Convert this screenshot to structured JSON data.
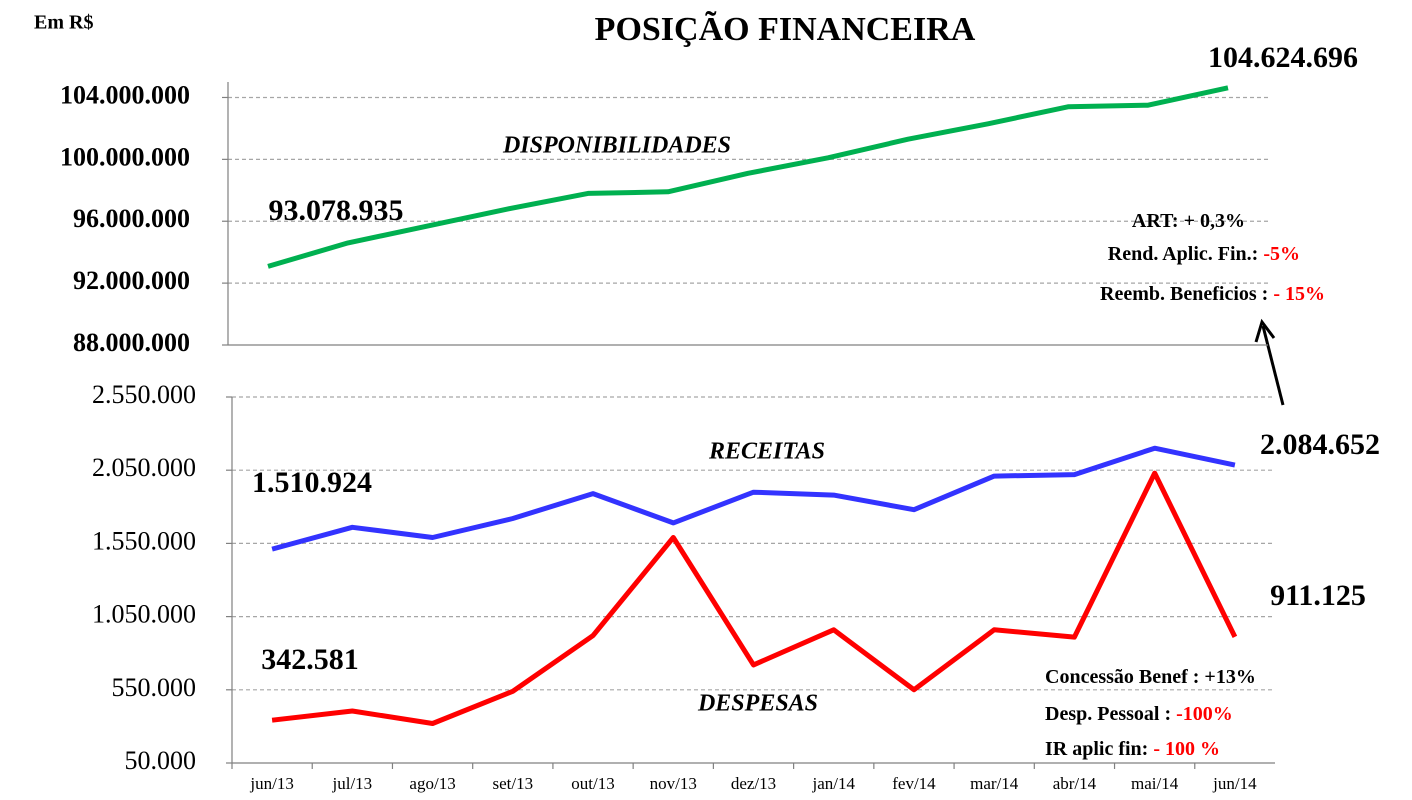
{
  "unit_label": "Em R$",
  "chart_data": [
    {
      "type": "line",
      "title": "POSIÇÃO FINANCEIRA",
      "ylim": [
        88000000,
        105000000
      ],
      "yticks": [
        {
          "value": 88000000,
          "label": "88.000.000"
        },
        {
          "value": 92000000,
          "label": "92.000.000"
        },
        {
          "value": 96000000,
          "label": "96.000.000"
        },
        {
          "value": 100000000,
          "label": "100.000.000"
        },
        {
          "value": 104000000,
          "label": "104.000.000"
        }
      ],
      "grid": true,
      "series": [
        {
          "name": "DISPONIBILIDADES",
          "color": "#00b050",
          "values": [
            93078935,
            94600000,
            95700000,
            96800000,
            97800000,
            97900000,
            99100000,
            100100000,
            101300000,
            102300000,
            103400000,
            103500000,
            104624696
          ],
          "value_labels": [
            "93.078.935",
            null,
            null,
            null,
            null,
            null,
            null,
            null,
            null,
            null,
            null,
            null,
            "104.624.696"
          ]
        }
      ],
      "highlight_color": "#ff0000",
      "annotations": [
        {
          "label": "ART: + 0,3%"
        },
        {
          "label": "Rend. Aplic. Fin.:",
          "value": "-5%"
        },
        {
          "label": "Reemb. Beneficios :",
          "value": "- 15%"
        }
      ]
    },
    {
      "type": "line",
      "categories": [
        "jun/13",
        "jul/13",
        "ago/13",
        "set/13",
        "out/13",
        "nov/13",
        "dez/13",
        "jan/14",
        "fev/14",
        "mar/14",
        "abr/14",
        "mai/14",
        "jun/14"
      ],
      "ylim": [
        50000,
        2550000
      ],
      "yticks": [
        {
          "value": 50000,
          "label": "50.000"
        },
        {
          "value": 550000,
          "label": "550.000"
        },
        {
          "value": 1050000,
          "label": "1.050.000"
        },
        {
          "value": 1550000,
          "label": "1.550.000"
        },
        {
          "value": 2050000,
          "label": "2.050.000"
        },
        {
          "value": 2550000,
          "label": "2.550.000"
        }
      ],
      "grid": true,
      "series": [
        {
          "name": "RECEITAS",
          "color": "#3333ff",
          "values": [
            1510924,
            1660000,
            1590000,
            1720000,
            1890000,
            1690000,
            1900000,
            1880000,
            1780000,
            2010000,
            2020000,
            2200000,
            2084652
          ],
          "value_labels": [
            "1.510.924",
            null,
            null,
            null,
            null,
            null,
            null,
            null,
            null,
            null,
            null,
            null,
            "2.084.652"
          ]
        },
        {
          "name": "DESPESAS",
          "color": "#ff0000",
          "values": [
            342581,
            405000,
            320000,
            540000,
            920000,
            1590000,
            720000,
            960000,
            550000,
            960000,
            910000,
            2030000,
            911125
          ],
          "value_labels": [
            "342.581",
            null,
            null,
            null,
            null,
            null,
            null,
            null,
            null,
            null,
            null,
            null,
            "911.125"
          ]
        }
      ],
      "highlight_color": "#ff0000",
      "annotations": [
        {
          "label": "Concessão  Benef : +13%"
        },
        {
          "label": "Desp. Pessoal :",
          "value": "-100%"
        },
        {
          "label": "IR aplic fin:",
          "value": "- 100 %"
        }
      ]
    }
  ]
}
